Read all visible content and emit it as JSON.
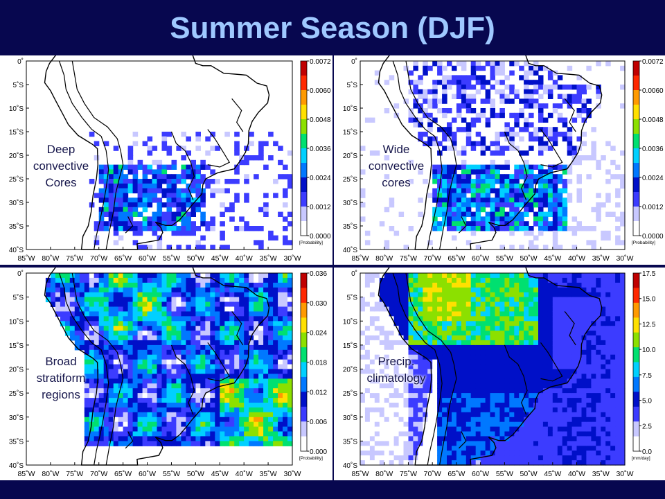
{
  "title": "Summer Season (DJF)",
  "lat_labels": [
    "0˚",
    "5˚S",
    "10˚S",
    "15˚S",
    "20˚S",
    "25˚S",
    "30˚S",
    "35˚S",
    "40˚S"
  ],
  "lon_labels": [
    "85˚W",
    "80˚W",
    "75˚W",
    "70˚W",
    "65˚W",
    "60˚W",
    "55˚W",
    "50˚W",
    "45˚W",
    "40˚W",
    "35˚W",
    "30˚W"
  ],
  "colormap": [
    "#ffffff",
    "#c8c8ff",
    "#3c3cff",
    "#0010c8",
    "#0078ff",
    "#00d0ff",
    "#00e070",
    "#8ce000",
    "#ffe000",
    "#ff9a00",
    "#ff2800",
    "#c00000",
    "#500000"
  ],
  "panels": [
    {
      "id": "deep-convective-cores",
      "annotation": [
        "Deep",
        "convective",
        "Cores"
      ],
      "colorbar_ticks": [
        "0.0072",
        "0.0060",
        "0.0048",
        "0.0036",
        "0.0024",
        "0.0012",
        "0.0000"
      ],
      "colorbar_unit": "[Probability]",
      "field": "deep",
      "show_lon_axis": true
    },
    {
      "id": "wide-convective-cores",
      "annotation": [
        "Wide",
        "convective",
        "cores"
      ],
      "colorbar_ticks": [
        "0.0072",
        "0.0060",
        "0.0048",
        "0.0036",
        "0.0024",
        "0.0012",
        "0.0000"
      ],
      "colorbar_unit": "[Probability]",
      "field": "wide",
      "show_lon_axis": true
    },
    {
      "id": "broad-stratiform-regions",
      "annotation": [
        "Broad",
        "stratiform",
        "regions"
      ],
      "colorbar_ticks": [
        "0.036",
        "0.030",
        "0.024",
        "0.018",
        "0.012",
        "0.006",
        "0.000"
      ],
      "colorbar_unit": "[Probability]",
      "field": "broad",
      "show_lon_axis": true
    },
    {
      "id": "precip-climatology",
      "annotation": [
        "Precip.",
        "climatology"
      ],
      "colorbar_ticks": [
        "17.5",
        "15.0",
        "12.5",
        "10.0",
        "7.5",
        "5.0",
        "2.5",
        "0.0"
      ],
      "colorbar_unit": "[mm/day]",
      "field": "precip",
      "show_lon_axis": true
    }
  ]
}
